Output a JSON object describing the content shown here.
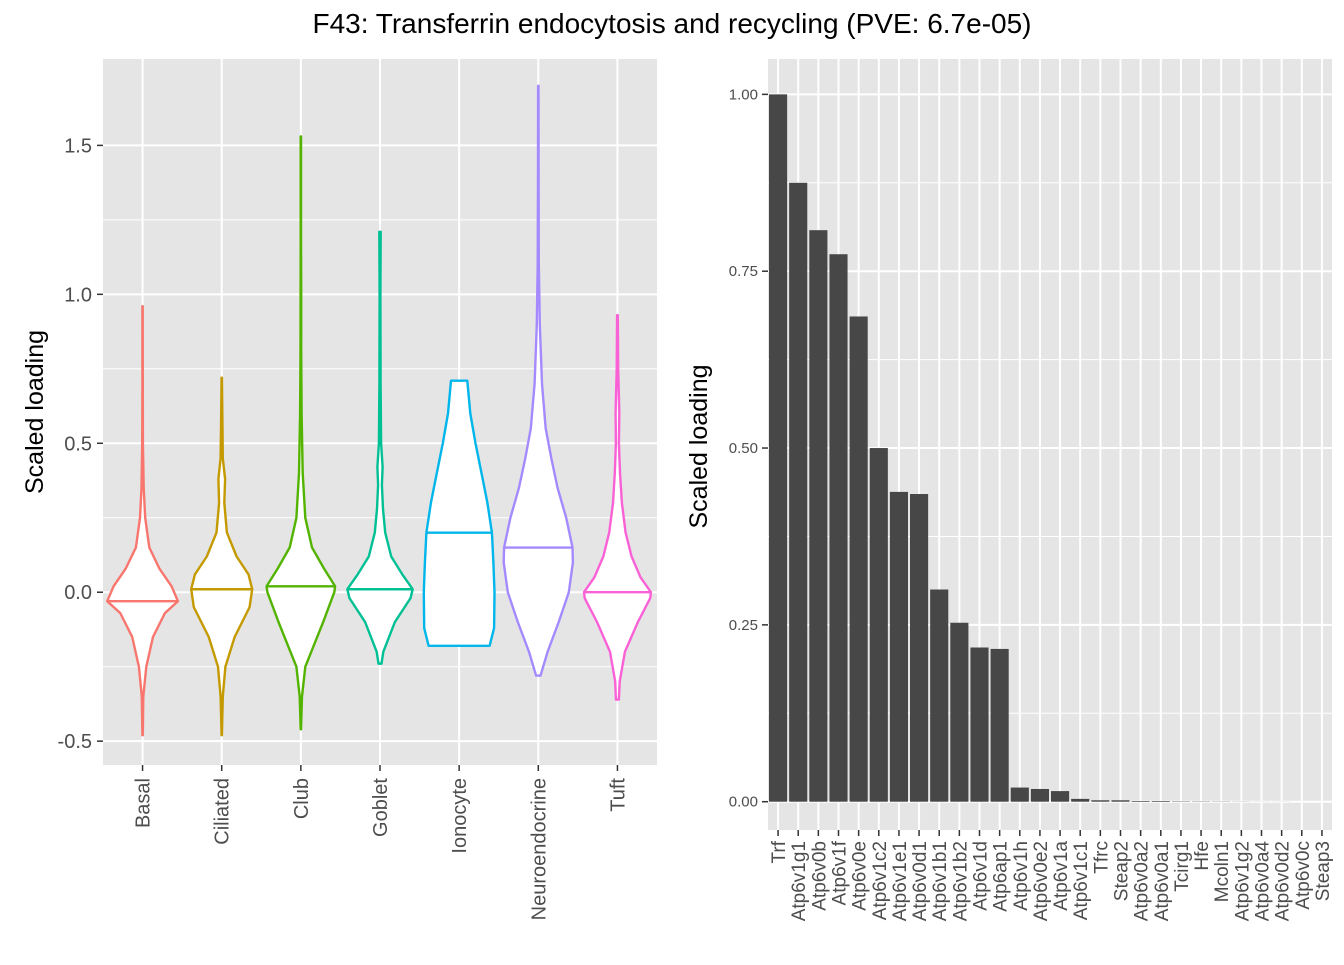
{
  "title": "F43: Transferrin endocytosis and recycling (PVE: 6.7e-05)",
  "colors": {
    "panel_bg": "#e5e5e5",
    "grid": "#ffffff",
    "bar": "#474747",
    "axis_text": "#4d4d4d",
    "title_text": "#000000"
  },
  "chart_data": [
    {
      "type": "violin",
      "ylabel": "Scaled loading",
      "xlabel": "",
      "ylim": [
        -0.58,
        1.79
      ],
      "yticks": [
        -0.5,
        0.0,
        0.5,
        1.0,
        1.5
      ],
      "ytick_labels": [
        "-0.5",
        "0.0",
        "0.5",
        "1.0",
        "1.5"
      ],
      "grid": true,
      "legend": "none",
      "categories": [
        "Basal",
        "Ciliated",
        "Club",
        "Goblet",
        "Ionocyte",
        "Neuroendocrine",
        "Tuft"
      ],
      "series": [
        {
          "category": "Basal",
          "color": "#F8766D",
          "min": -0.48,
          "max": 0.96,
          "median": -0.03,
          "profile": [
            [
              -0.48,
              0.005
            ],
            [
              -0.35,
              0.02
            ],
            [
              -0.25,
              0.1
            ],
            [
              -0.15,
              0.28
            ],
            [
              -0.07,
              0.6
            ],
            [
              -0.03,
              0.95
            ],
            [
              0.02,
              0.78
            ],
            [
              0.08,
              0.45
            ],
            [
              0.15,
              0.18
            ],
            [
              0.25,
              0.07
            ],
            [
              0.35,
              0.03
            ],
            [
              0.5,
              0.01
            ],
            [
              0.7,
              0.005
            ],
            [
              0.96,
              0.004
            ]
          ]
        },
        {
          "category": "Ciliated",
          "color": "#C49A00",
          "min": -0.48,
          "max": 0.72,
          "median": 0.01,
          "profile": [
            [
              -0.48,
              0.004
            ],
            [
              -0.35,
              0.03
            ],
            [
              -0.25,
              0.1
            ],
            [
              -0.15,
              0.35
            ],
            [
              -0.05,
              0.75
            ],
            [
              0.01,
              0.82
            ],
            [
              0.06,
              0.72
            ],
            [
              0.12,
              0.4
            ],
            [
              0.2,
              0.14
            ],
            [
              0.3,
              0.07
            ],
            [
              0.38,
              0.09
            ],
            [
              0.45,
              0.03
            ],
            [
              0.55,
              0.02
            ],
            [
              0.72,
              0.004
            ]
          ]
        },
        {
          "category": "Club",
          "color": "#53B400",
          "min": -0.46,
          "max": 1.53,
          "median": 0.02,
          "profile": [
            [
              -0.46,
              0.004
            ],
            [
              -0.35,
              0.03
            ],
            [
              -0.25,
              0.12
            ],
            [
              -0.1,
              0.6
            ],
            [
              0.0,
              0.9
            ],
            [
              0.02,
              0.92
            ],
            [
              0.08,
              0.62
            ],
            [
              0.15,
              0.3
            ],
            [
              0.25,
              0.12
            ],
            [
              0.4,
              0.05
            ],
            [
              0.6,
              0.02
            ],
            [
              0.8,
              0.01
            ],
            [
              1.0,
              0.008
            ],
            [
              1.2,
              0.004
            ],
            [
              1.53,
              0.003
            ]
          ]
        },
        {
          "category": "Goblet",
          "color": "#00C094",
          "min": -0.24,
          "max": 1.21,
          "median": 0.01,
          "profile": [
            [
              -0.24,
              0.04
            ],
            [
              -0.2,
              0.09
            ],
            [
              -0.1,
              0.4
            ],
            [
              -0.02,
              0.82
            ],
            [
              0.01,
              0.88
            ],
            [
              0.06,
              0.6
            ],
            [
              0.12,
              0.3
            ],
            [
              0.2,
              0.14
            ],
            [
              0.28,
              0.08
            ],
            [
              0.36,
              0.05
            ],
            [
              0.42,
              0.07
            ],
            [
              0.5,
              0.03
            ],
            [
              0.7,
              0.015
            ],
            [
              1.0,
              0.01
            ],
            [
              1.21,
              0.02
            ]
          ]
        },
        {
          "category": "Ionocyte",
          "color": "#00B6EB",
          "min": -0.18,
          "max": 0.71,
          "median": 0.2,
          "profile": [
            [
              -0.18,
              0.82
            ],
            [
              -0.12,
              0.94
            ],
            [
              0.0,
              0.95
            ],
            [
              0.1,
              0.92
            ],
            [
              0.2,
              0.88
            ],
            [
              0.3,
              0.76
            ],
            [
              0.4,
              0.6
            ],
            [
              0.5,
              0.44
            ],
            [
              0.6,
              0.3
            ],
            [
              0.71,
              0.22
            ]
          ]
        },
        {
          "category": "Neuroendocrine",
          "color": "#A58AFF",
          "min": -0.28,
          "max": 1.7,
          "median": 0.15,
          "profile": [
            [
              -0.28,
              0.06
            ],
            [
              -0.2,
              0.25
            ],
            [
              -0.1,
              0.55
            ],
            [
              0.0,
              0.82
            ],
            [
              0.1,
              0.93
            ],
            [
              0.15,
              0.92
            ],
            [
              0.25,
              0.75
            ],
            [
              0.35,
              0.52
            ],
            [
              0.45,
              0.35
            ],
            [
              0.55,
              0.2
            ],
            [
              0.7,
              0.1
            ],
            [
              0.9,
              0.04
            ],
            [
              1.1,
              0.015
            ],
            [
              1.4,
              0.008
            ],
            [
              1.7,
              0.006
            ]
          ]
        },
        {
          "category": "Tuft",
          "color": "#FB61D7",
          "min": -0.36,
          "max": 0.93,
          "median": 0.0,
          "profile": [
            [
              -0.36,
              0.04
            ],
            [
              -0.3,
              0.06
            ],
            [
              -0.2,
              0.2
            ],
            [
              -0.1,
              0.55
            ],
            [
              -0.02,
              0.88
            ],
            [
              0.0,
              0.9
            ],
            [
              0.05,
              0.62
            ],
            [
              0.12,
              0.38
            ],
            [
              0.2,
              0.22
            ],
            [
              0.3,
              0.12
            ],
            [
              0.4,
              0.07
            ],
            [
              0.5,
              0.04
            ],
            [
              0.6,
              0.05
            ],
            [
              0.75,
              0.02
            ],
            [
              0.93,
              0.01
            ]
          ]
        }
      ]
    },
    {
      "type": "bar",
      "ylabel": "Scaled loading",
      "xlabel": "",
      "ylim": [
        -0.04,
        1.05
      ],
      "yticks": [
        0.0,
        0.25,
        0.5,
        0.75,
        1.0
      ],
      "ytick_labels": [
        "0.00",
        "0.25",
        "0.50",
        "0.75",
        "1.00"
      ],
      "grid": true,
      "legend": "none",
      "categories": [
        "Trf",
        "Atp6v1g1",
        "Atp6v0b",
        "Atp6v1f",
        "Atp6v0e",
        "Atp6v1c2",
        "Atp6v1e1",
        "Atp6v0d1",
        "Atp6v1b1",
        "Atp6v1b2",
        "Atp6v1d",
        "Atp6ap1",
        "Atp6v1h",
        "Atp6v0e2",
        "Atp6v1a",
        "Atp6v1c1",
        "Tfrc",
        "Steap2",
        "Atp6v0a2",
        "Atp6v0a1",
        "Tcirg1",
        "Hfe",
        "Mcoln1",
        "Atp6v1g2",
        "Atp6v0a4",
        "Atp6v0d2",
        "Atp6v0c",
        "Steap3"
      ],
      "values": [
        1.0,
        0.875,
        0.808,
        0.774,
        0.686,
        0.5,
        0.438,
        0.435,
        0.3,
        0.253,
        0.218,
        0.216,
        0.02,
        0.018,
        0.015,
        0.004,
        0.002,
        0.002,
        0.001,
        0.001,
        0.0005,
        0.0004,
        0.0003,
        0.0002,
        0.0001,
        0.0001,
        0.0,
        0.0
      ]
    }
  ]
}
